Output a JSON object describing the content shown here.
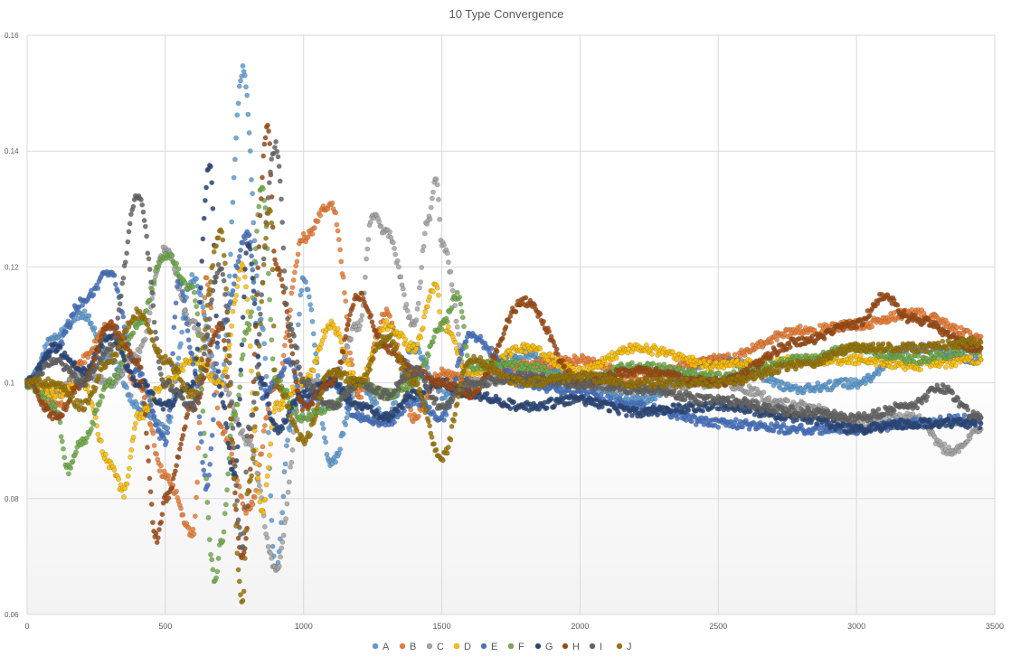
{
  "chart_data": {
    "type": "scatter",
    "title": "10 Type Convergence",
    "xlabel": "",
    "ylabel": "",
    "xlim": [
      0,
      3500
    ],
    "ylim": [
      0.06,
      0.16
    ],
    "x_ticks": [
      0,
      500,
      1000,
      1500,
      2000,
      2500,
      3000,
      3500
    ],
    "y_ticks": [
      0.06,
      0.08,
      0.1,
      0.12,
      0.14,
      0.16
    ],
    "x_tick_labels": [
      "0",
      "500",
      "1000",
      "1500",
      "2000",
      "2500",
      "3000",
      "3500"
    ],
    "y_tick_labels": [
      "0.06",
      "0.08",
      "0.1",
      "0.12",
      "0.14",
      "0.16"
    ],
    "grid": true,
    "legend_position": "bottom",
    "marker": "circle",
    "series": [
      {
        "name": "A",
        "color": "#5B9BD5",
        "x": [
          0,
          100,
          200,
          300,
          400,
          500,
          600,
          700,
          780,
          850,
          900,
          950,
          1000,
          1100,
          1200,
          1300,
          1400,
          1500,
          1600,
          1800,
          2000,
          2200,
          2500,
          2800,
          3000,
          3200,
          3450
        ],
        "y": [
          0.1,
          0.108,
          0.112,
          0.104,
          0.096,
          0.092,
          0.118,
          0.1,
          0.154,
          0.11,
          0.067,
          0.092,
          0.118,
          0.086,
          0.1,
          0.094,
          0.106,
          0.098,
          0.1,
          0.105,
          0.1,
          0.097,
          0.104,
          0.099,
          0.1,
          0.106,
          0.104
        ]
      },
      {
        "name": "B",
        "color": "#ED7D31",
        "x": [
          0,
          100,
          200,
          300,
          400,
          500,
          600,
          650,
          700,
          800,
          900,
          1000,
          1100,
          1200,
          1300,
          1400,
          1500,
          1600,
          1800,
          2000,
          2200,
          2500,
          2800,
          3000,
          3200,
          3450
        ],
        "y": [
          0.1,
          0.096,
          0.104,
          0.11,
          0.1,
          0.084,
          0.074,
          0.118,
          0.092,
          0.078,
          0.1,
          0.125,
          0.131,
          0.098,
          0.112,
          0.094,
          0.102,
          0.1,
          0.103,
          0.104,
          0.101,
          0.104,
          0.109,
          0.11,
          0.112,
          0.108
        ]
      },
      {
        "name": "C",
        "color": "#A5A5A5",
        "x": [
          0,
          100,
          200,
          300,
          400,
          500,
          600,
          700,
          800,
          900,
          1000,
          1100,
          1200,
          1250,
          1300,
          1400,
          1450,
          1480,
          1500,
          1600,
          1800,
          2000,
          2200,
          2500,
          2800,
          3000,
          3200,
          3350,
          3450
        ],
        "y": [
          0.1,
          0.098,
          0.102,
          0.1,
          0.105,
          0.123,
          0.11,
          0.1,
          0.09,
          0.068,
          0.1,
          0.1,
          0.11,
          0.129,
          0.126,
          0.11,
          0.128,
          0.135,
          0.124,
          0.1,
          0.101,
          0.1,
          0.099,
          0.1,
          0.096,
          0.093,
          0.094,
          0.088,
          0.092
        ]
      },
      {
        "name": "D",
        "color": "#FFC000",
        "x": [
          0,
          100,
          200,
          300,
          350,
          400,
          500,
          600,
          700,
          780,
          850,
          900,
          1000,
          1100,
          1200,
          1300,
          1400,
          1480,
          1500,
          1600,
          1800,
          2000,
          2200,
          2500,
          2800,
          3000,
          3200,
          3450
        ],
        "y": [
          0.1,
          0.098,
          0.1,
          0.086,
          0.081,
          0.094,
          0.1,
          0.104,
          0.1,
          0.12,
          0.078,
          0.096,
          0.1,
          0.11,
          0.1,
          0.11,
          0.106,
          0.117,
          0.11,
          0.102,
          0.106,
          0.102,
          0.106,
          0.103,
          0.104,
          0.104,
          0.103,
          0.104
        ]
      },
      {
        "name": "E",
        "color": "#4472C4",
        "x": [
          0,
          100,
          200,
          300,
          400,
          500,
          550,
          600,
          650,
          700,
          800,
          850,
          900,
          950,
          1000,
          1100,
          1200,
          1300,
          1400,
          1500,
          1600,
          1800,
          2000,
          2200,
          2500,
          2800,
          3000,
          3200,
          3450
        ],
        "y": [
          0.1,
          0.106,
          0.114,
          0.119,
          0.102,
          0.09,
          0.118,
          0.104,
          0.082,
          0.11,
          0.126,
          0.098,
          0.1,
          0.104,
          0.096,
          0.1,
          0.094,
          0.093,
          0.097,
          0.094,
          0.108,
          0.1,
          0.098,
          0.096,
          0.093,
          0.092,
          0.092,
          0.093,
          0.094
        ]
      },
      {
        "name": "F",
        "color": "#70AD47",
        "x": [
          0,
          100,
          150,
          200,
          300,
          400,
          500,
          600,
          680,
          700,
          750,
          800,
          850,
          900,
          1000,
          1100,
          1200,
          1300,
          1400,
          1500,
          1560,
          1600,
          1800,
          2000,
          2200,
          2500,
          2800,
          3000,
          3200,
          3450
        ],
        "y": [
          0.1,
          0.096,
          0.085,
          0.09,
          0.1,
          0.11,
          0.122,
          0.116,
          0.066,
          0.072,
          0.095,
          0.11,
          0.134,
          0.1,
          0.094,
          0.096,
          0.1,
          0.098,
          0.1,
          0.11,
          0.115,
          0.103,
          0.103,
          0.1,
          0.103,
          0.101,
          0.104,
          0.106,
          0.104,
          0.106
        ]
      },
      {
        "name": "G",
        "color": "#264478",
        "x": [
          0,
          100,
          200,
          300,
          400,
          500,
          600,
          660,
          700,
          750,
          800,
          850,
          900,
          1000,
          1100,
          1200,
          1300,
          1400,
          1500,
          1600,
          1800,
          2000,
          2200,
          2500,
          2800,
          3000,
          3200,
          3450
        ],
        "y": [
          0.1,
          0.106,
          0.102,
          0.108,
          0.1,
          0.096,
          0.1,
          0.138,
          0.098,
          0.084,
          0.124,
          0.1,
          0.092,
          0.098,
          0.1,
          0.096,
          0.094,
          0.098,
          0.1,
          0.098,
          0.096,
          0.097,
          0.095,
          0.096,
          0.094,
          0.092,
          0.093,
          0.093
        ]
      },
      {
        "name": "H",
        "color": "#9E480E",
        "x": [
          0,
          100,
          200,
          300,
          400,
          470,
          500,
          600,
          700,
          780,
          870,
          900,
          1000,
          1100,
          1200,
          1300,
          1400,
          1500,
          1600,
          1800,
          2000,
          2200,
          2500,
          2800,
          3000,
          3100,
          3200,
          3450
        ],
        "y": [
          0.1,
          0.094,
          0.1,
          0.11,
          0.104,
          0.073,
          0.08,
          0.096,
          0.11,
          0.07,
          0.144,
          0.12,
          0.096,
          0.1,
          0.115,
          0.106,
          0.102,
          0.1,
          0.098,
          0.114,
          0.1,
          0.102,
          0.1,
          0.107,
          0.11,
          0.115,
          0.111,
          0.106
        ]
      },
      {
        "name": "I",
        "color": "#636363",
        "x": [
          0,
          100,
          200,
          300,
          400,
          500,
          600,
          700,
          780,
          800,
          900,
          950,
          1000,
          1100,
          1200,
          1300,
          1400,
          1500,
          1600,
          1800,
          2000,
          2200,
          2500,
          2800,
          3000,
          3200,
          3300,
          3450
        ],
        "y": [
          0.1,
          0.104,
          0.1,
          0.106,
          0.132,
          0.1,
          0.096,
          0.12,
          0.072,
          0.092,
          0.141,
          0.11,
          0.1,
          0.096,
          0.1,
          0.098,
          0.102,
          0.096,
          0.1,
          0.101,
          0.1,
          0.099,
          0.097,
          0.095,
          0.094,
          0.096,
          0.099,
          0.094
        ]
      },
      {
        "name": "J",
        "color": "#997300",
        "x": [
          0,
          100,
          200,
          300,
          400,
          500,
          600,
          700,
          780,
          800,
          880,
          900,
          1000,
          1100,
          1200,
          1300,
          1400,
          1500,
          1600,
          1800,
          2000,
          2200,
          2500,
          2800,
          3000,
          3200,
          3450
        ],
        "y": [
          0.1,
          0.1,
          0.096,
          0.104,
          0.112,
          0.104,
          0.098,
          0.126,
          0.062,
          0.082,
          0.13,
          0.1,
          0.09,
          0.102,
          0.1,
          0.108,
          0.1,
          0.087,
          0.104,
          0.1,
          0.101,
          0.1,
          0.1,
          0.103,
          0.106,
          0.106,
          0.107
        ]
      }
    ]
  }
}
